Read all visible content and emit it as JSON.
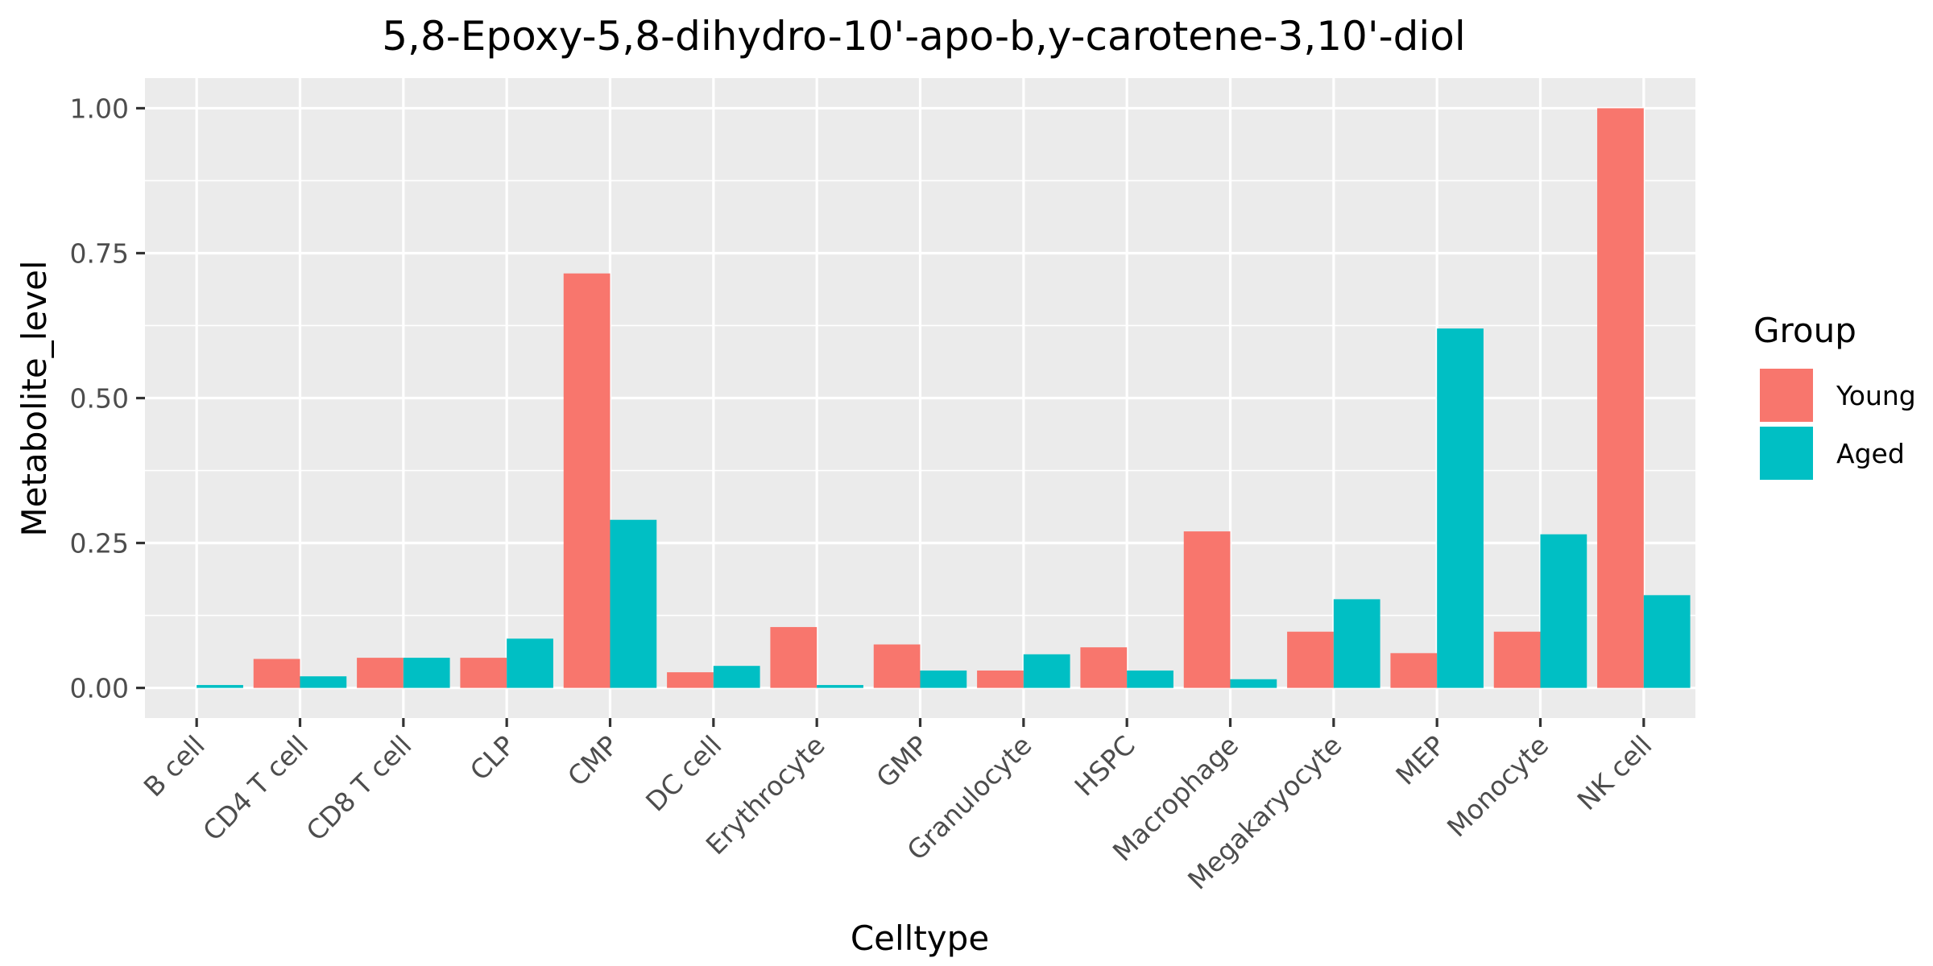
{
  "chart_data": {
    "type": "bar",
    "title": "5,8-Epoxy-5,8-dihydro-10'-apo-b,y-carotene-3,10'-diol",
    "xlabel": "Celltype",
    "ylabel": "Metabolite_level",
    "categories": [
      "B cell",
      "CD4 T cell",
      "CD8 T cell",
      "CLP",
      "CMP",
      "DC cell",
      "Erythrocyte",
      "GMP",
      "Granulocyte",
      "HSPC",
      "Macrophage",
      "Megakaryocyte",
      "MEP",
      "Monocyte",
      "NK cell"
    ],
    "series": [
      {
        "name": "Young",
        "color": "#F8766D",
        "values": [
          0.0,
          0.05,
          0.052,
          0.052,
          0.715,
          0.027,
          0.105,
          0.075,
          0.03,
          0.07,
          0.27,
          0.097,
          0.06,
          0.097,
          1.0
        ]
      },
      {
        "name": "Aged",
        "color": "#00BFC4",
        "values": [
          0.005,
          0.02,
          0.052,
          0.085,
          0.29,
          0.038,
          0.005,
          0.03,
          0.058,
          0.03,
          0.015,
          0.153,
          0.62,
          0.265,
          0.16
        ]
      }
    ],
    "ylim": [
      -0.052,
      1.052
    ],
    "yticks": [
      0.0,
      0.25,
      0.5,
      0.75,
      1.0
    ],
    "ytick_labels": [
      "0.00",
      "0.25",
      "0.50",
      "0.75",
      "1.00"
    ],
    "legend": {
      "title": "Group",
      "position": "right"
    },
    "grid": true,
    "panel_background": "#EBEBEB",
    "grid_color": "#FFFFFF"
  }
}
